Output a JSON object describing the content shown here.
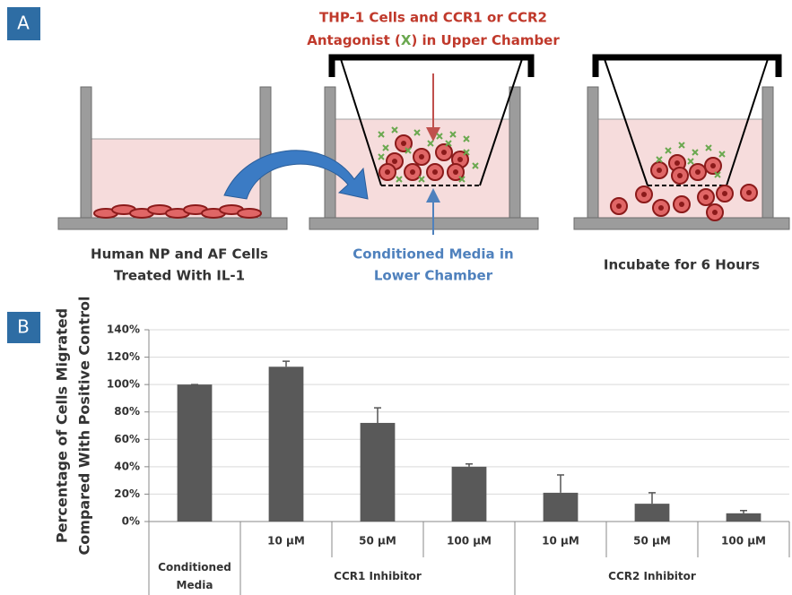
{
  "panel_labels": [
    "A",
    "B"
  ],
  "diagram": {
    "top_caption": "THP-1 Cells and CCR1 or CCR2",
    "top_caption_parts": [
      "Antagonist (",
      "X",
      ") in Upper Chamber"
    ],
    "left_caption": [
      "Human NP and AF Cells",
      "Treated With IL-1"
    ],
    "middle_caption": [
      "Conditioned Media in",
      "Lower Chamber"
    ],
    "right_caption": "Incubate for 6 Hours"
  },
  "chart_data": {
    "type": "bar",
    "ylabel": [
      "Percentage of Cells Migrated",
      "Compared With Positive Control"
    ],
    "categories": [
      null,
      "10 µM",
      "50 µM",
      "100 µM",
      "10 µM",
      "50 µM",
      "100 µM"
    ],
    "groups": [
      "Conditioned Media",
      "CCR1 Inhibitor",
      "CCR2 Inhibitor"
    ],
    "values": [
      100,
      113,
      72,
      40,
      21,
      13,
      6
    ],
    "errors": [
      0,
      4,
      11,
      2,
      13,
      8,
      2
    ],
    "color": "#595959",
    "ylim": [
      0,
      140
    ],
    "yticks": [
      {
        "value": 0,
        "label": "0%"
      },
      {
        "value": 20,
        "label": "20%"
      },
      {
        "value": 40,
        "label": "40%"
      },
      {
        "value": 60,
        "label": "60%"
      },
      {
        "value": 80,
        "label": "80%"
      },
      {
        "value": 100,
        "label": "100%"
      },
      {
        "value": 120,
        "label": "120%"
      },
      {
        "value": 140,
        "label": "140%"
      }
    ],
    "grid": true
  }
}
